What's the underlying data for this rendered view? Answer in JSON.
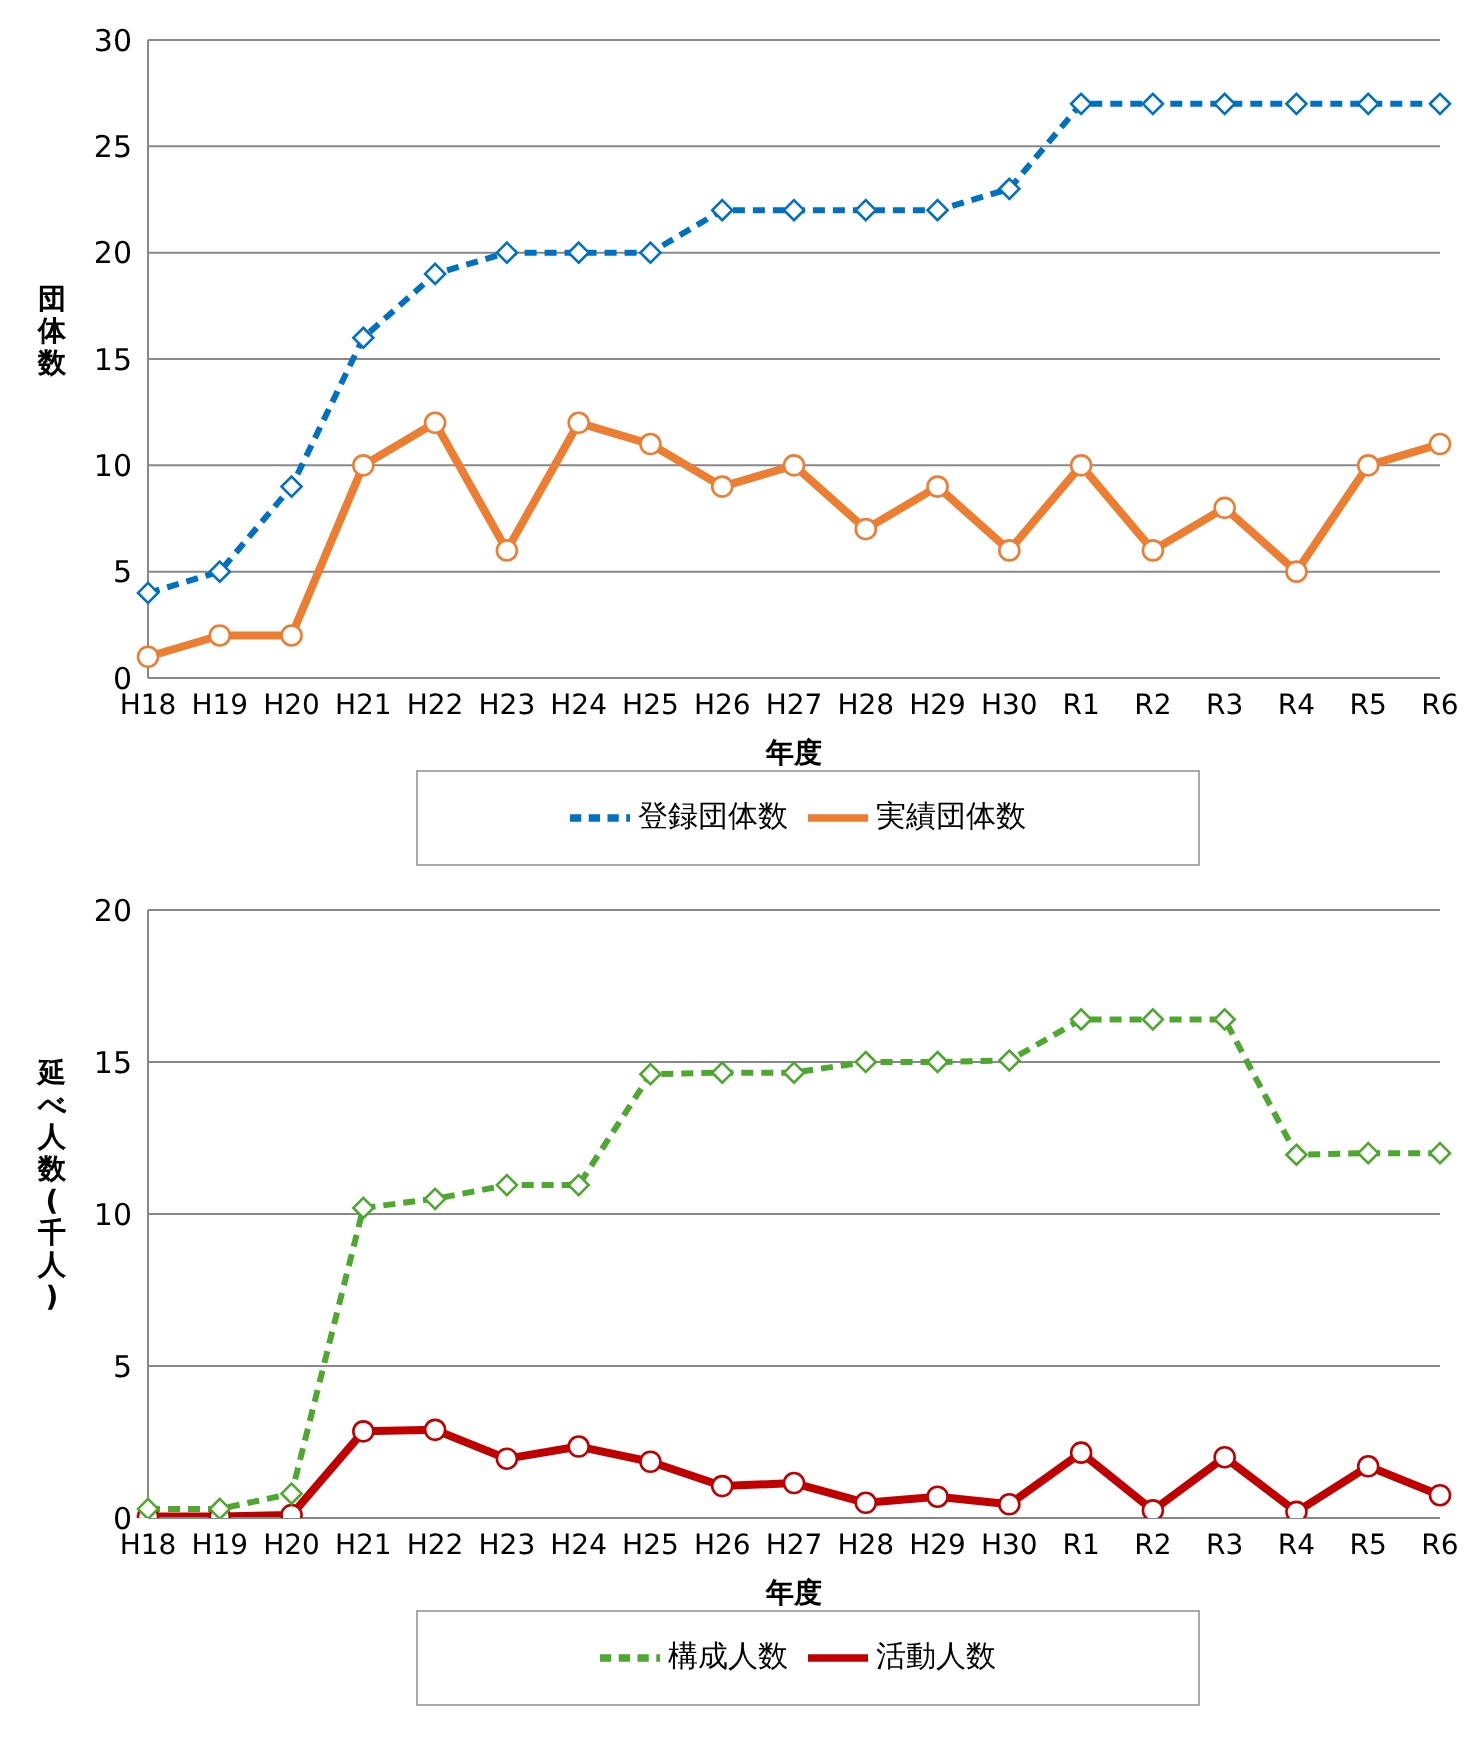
{
  "chart_data": [
    {
      "type": "line",
      "xlabel": "年度",
      "ylabel": "団体数",
      "categories": [
        "H18",
        "H19",
        "H20",
        "H21",
        "H22",
        "H23",
        "H24",
        "H25",
        "H26",
        "H27",
        "H28",
        "H29",
        "H30",
        "R1",
        "R2",
        "R3",
        "R4",
        "R5",
        "R6"
      ],
      "series": [
        {
          "name": "登録団体数",
          "color": "#0070c0",
          "marker": "diamond",
          "line_style": "dashed",
          "values": [
            4,
            5,
            9,
            16,
            19,
            20,
            20,
            20,
            22,
            22,
            22,
            22,
            23,
            27,
            27,
            27,
            27,
            27,
            27
          ]
        },
        {
          "name": "実績団体数",
          "color": "#ed7d31",
          "marker": "circle",
          "line_style": "solid",
          "values": [
            1,
            2,
            2,
            10,
            12,
            6,
            12,
            11,
            9,
            10,
            7,
            9,
            6,
            10,
            6,
            8,
            5,
            10,
            11
          ]
        }
      ],
      "ylim": [
        0,
        30
      ],
      "yticks": [
        0,
        5,
        10,
        15,
        20,
        25,
        30
      ],
      "grid": "y",
      "legend": "bottom"
    },
    {
      "type": "line",
      "xlabel": "年度",
      "ylabel": "延べ人数(千人)",
      "categories": [
        "H18",
        "H19",
        "H20",
        "H21",
        "H22",
        "H23",
        "H24",
        "H25",
        "H26",
        "H27",
        "H28",
        "H29",
        "H30",
        "R1",
        "R2",
        "R3",
        "R4",
        "R5",
        "R6"
      ],
      "series": [
        {
          "name": "構成人数",
          "color": "#4ea72e",
          "marker": "diamond",
          "line_style": "dashed",
          "values": [
            0.3,
            0.3,
            0.8,
            10.2,
            10.5,
            10.95,
            10.95,
            14.6,
            14.65,
            14.65,
            15,
            15,
            15.05,
            16.4,
            16.4,
            16.4,
            11.95,
            12,
            12
          ]
        },
        {
          "name": "活動人数",
          "color": "#c00000",
          "marker": "circle",
          "line_style": "solid",
          "values": [
            0.05,
            0.05,
            0.1,
            2.85,
            2.9,
            1.95,
            2.35,
            1.85,
            1.05,
            1.15,
            0.5,
            0.7,
            0.45,
            2.15,
            0.25,
            2,
            0.2,
            1.7,
            0.75
          ]
        }
      ],
      "ylim": [
        0,
        20
      ],
      "yticks": [
        0,
        5,
        10,
        15,
        20
      ],
      "grid": "y",
      "legend": "bottom"
    }
  ]
}
